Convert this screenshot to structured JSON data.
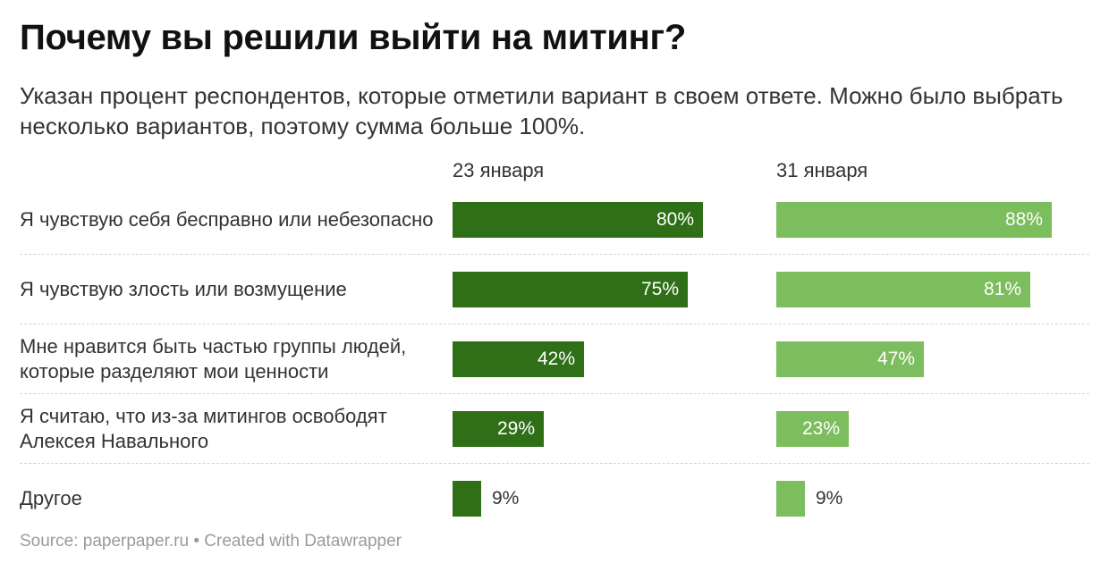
{
  "title": "Почему вы решили выйти на митинг?",
  "subtitle": "Указан процент респондентов, которые отметили вариант в своем ответе. Можно было выбрать несколько вариантов, поэтому сумма больше 100%.",
  "footer": {
    "source": "Source: paperpaper.ru",
    "separator": "•",
    "credit": "Created with Datawrapper"
  },
  "colors": {
    "series1": "#2e6f17",
    "series2": "#7cbd5e"
  },
  "chart_data": {
    "type": "bar",
    "orientation": "horizontal",
    "value_suffix": "%",
    "xlim": [
      0,
      100
    ],
    "categories": [
      "Я чувствую себя бесправно или небезопасно",
      "Я чувствую злость или возмущение",
      "Мне нравится быть частью группы людей, которые разделяют мои ценности",
      "Я считаю, что из-за митингов освободят Алексея Навального",
      "Другое"
    ],
    "series": [
      {
        "name": "23 января",
        "values": [
          80,
          75,
          42,
          29,
          9
        ],
        "labels": [
          "80%",
          "75%",
          "42%",
          "29%",
          "9%"
        ]
      },
      {
        "name": "31 января",
        "values": [
          88,
          81,
          47,
          23,
          9
        ],
        "labels": [
          "88%",
          "81%",
          "47%",
          "23%",
          "9%"
        ]
      }
    ]
  }
}
